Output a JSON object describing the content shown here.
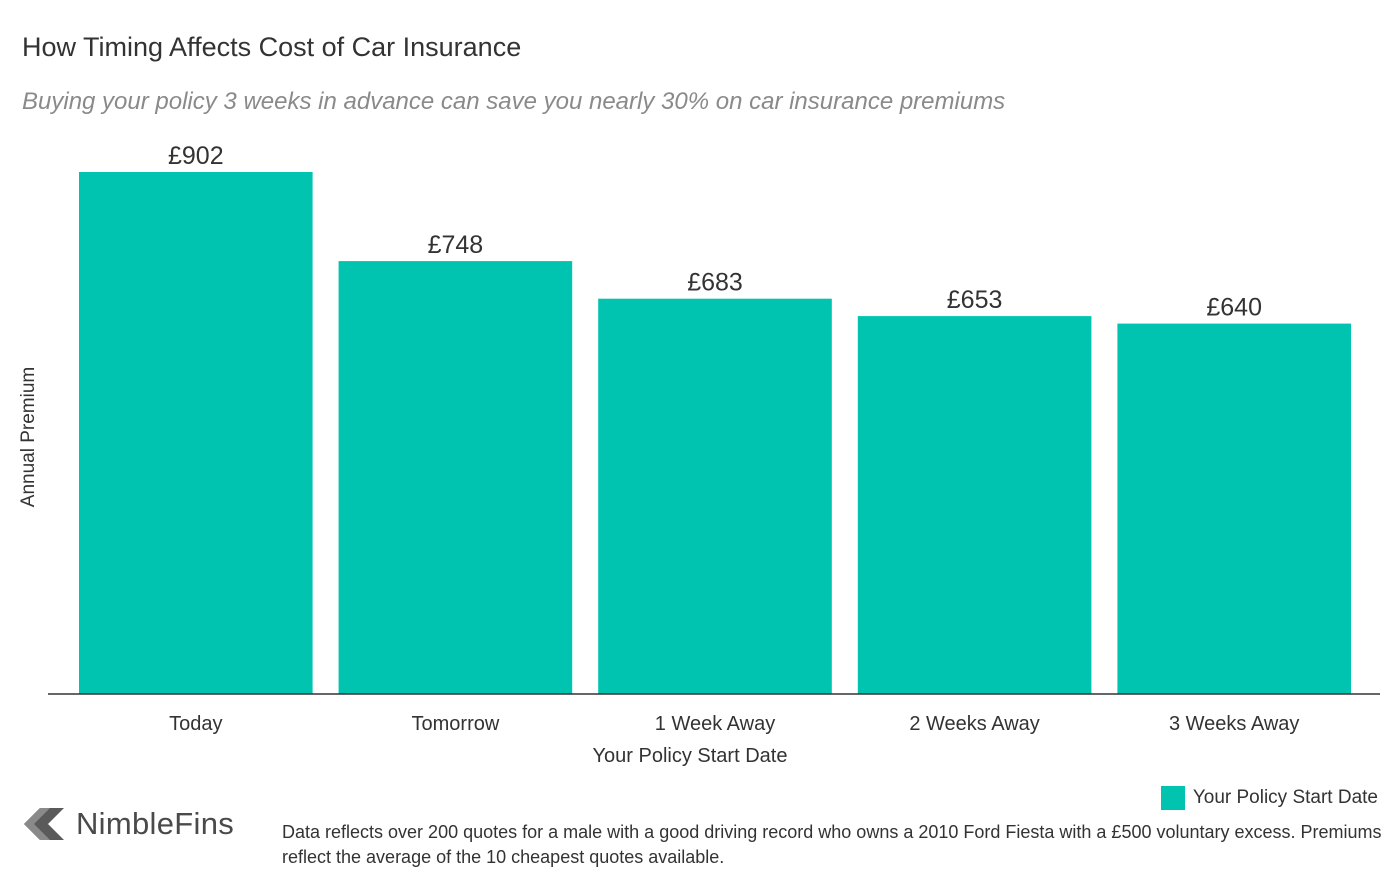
{
  "header": {
    "title": "How Timing Affects Cost of Car Insurance",
    "subtitle": "Buying your policy 3 weeks in advance can save you nearly 30% on car insurance premiums"
  },
  "chart_data": {
    "type": "bar",
    "categories": [
      "Today",
      "Tomorrow",
      "1 Week Away",
      "2 Weeks Away",
      "3 Weeks Away"
    ],
    "series": [
      {
        "name": "Your Policy Start Date",
        "values": [
          902,
          748,
          683,
          653,
          640
        ]
      }
    ],
    "data_labels": [
      "£902",
      "£748",
      "£683",
      "£653",
      "£640"
    ],
    "xlabel": "Your Policy Start Date",
    "ylabel": "Annual Premium",
    "ylim": [
      0,
      902
    ],
    "grid": false,
    "legend_position": "bottom-right",
    "bar_color": "#00c4b0"
  },
  "legend": {
    "label": "Your Policy Start Date"
  },
  "footer": {
    "brand": "NimbleFins",
    "note": "Data reflects over 200 quotes for a male with a good driving record who owns a 2010 Ford Fiesta with a £500 voluntary excess. Premiums reflect the average of the 10 cheapest quotes available."
  },
  "colors": {
    "accent": "#00c4b0",
    "text": "#333333",
    "subtitle": "#8a8a8a"
  },
  "icons": {
    "logo": "chevron-left-icon"
  }
}
